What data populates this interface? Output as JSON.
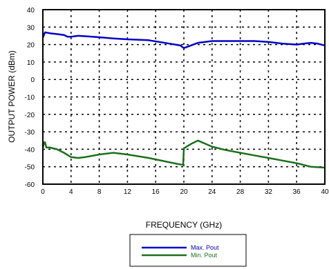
{
  "chart_data": {
    "type": "line",
    "xlabel": "FREQUENCY (GHz)",
    "ylabel": "OUTPUT POWER (dBm)",
    "xlim": [
      0,
      40
    ],
    "ylim": [
      -60,
      40
    ],
    "xticks": [
      0,
      4,
      8,
      12,
      16,
      20,
      24,
      28,
      32,
      36,
      40
    ],
    "yticks": [
      40,
      30,
      20,
      10,
      0,
      -10,
      -20,
      -30,
      -40,
      -50,
      -60
    ],
    "grid": true,
    "legend_position": "below",
    "series": [
      {
        "name": "Max. Pout",
        "color": "#0000c8",
        "x": [
          0,
          0.3,
          1,
          2,
          3,
          3.5,
          4,
          5,
          6,
          8,
          10,
          12,
          15,
          18,
          19.5,
          20,
          21,
          22,
          24,
          26,
          28,
          30,
          32,
          34,
          36,
          37,
          38,
          39,
          40
        ],
        "y": [
          24,
          27,
          26.5,
          26,
          25.5,
          24.5,
          24.5,
          25,
          24.8,
          24.2,
          23.5,
          23,
          22.5,
          20.5,
          19.5,
          18,
          19.5,
          21,
          22,
          22,
          22,
          22,
          21.5,
          20.5,
          20,
          20.5,
          21,
          20.5,
          19.5
        ]
      },
      {
        "name": "Min. Pout",
        "color": "#1a6e1a",
        "x": [
          0,
          0.2,
          0.3,
          0.5,
          1,
          2,
          3,
          4,
          5,
          6,
          8,
          10,
          12,
          15,
          18,
          19.9,
          19.9,
          20,
          21,
          22,
          24,
          26,
          28,
          30,
          32,
          34,
          36,
          37,
          38,
          40
        ],
        "y": [
          -39,
          -36,
          -36,
          -39,
          -39,
          -40,
          -42,
          -44.5,
          -45,
          -44.5,
          -43,
          -42,
          -43,
          -45,
          -47.5,
          -49,
          -49,
          -39.5,
          -37,
          -35,
          -38.5,
          -40.5,
          -42,
          -43.5,
          -45,
          -46.5,
          -48,
          -49,
          -50,
          -50.5
        ]
      }
    ]
  }
}
